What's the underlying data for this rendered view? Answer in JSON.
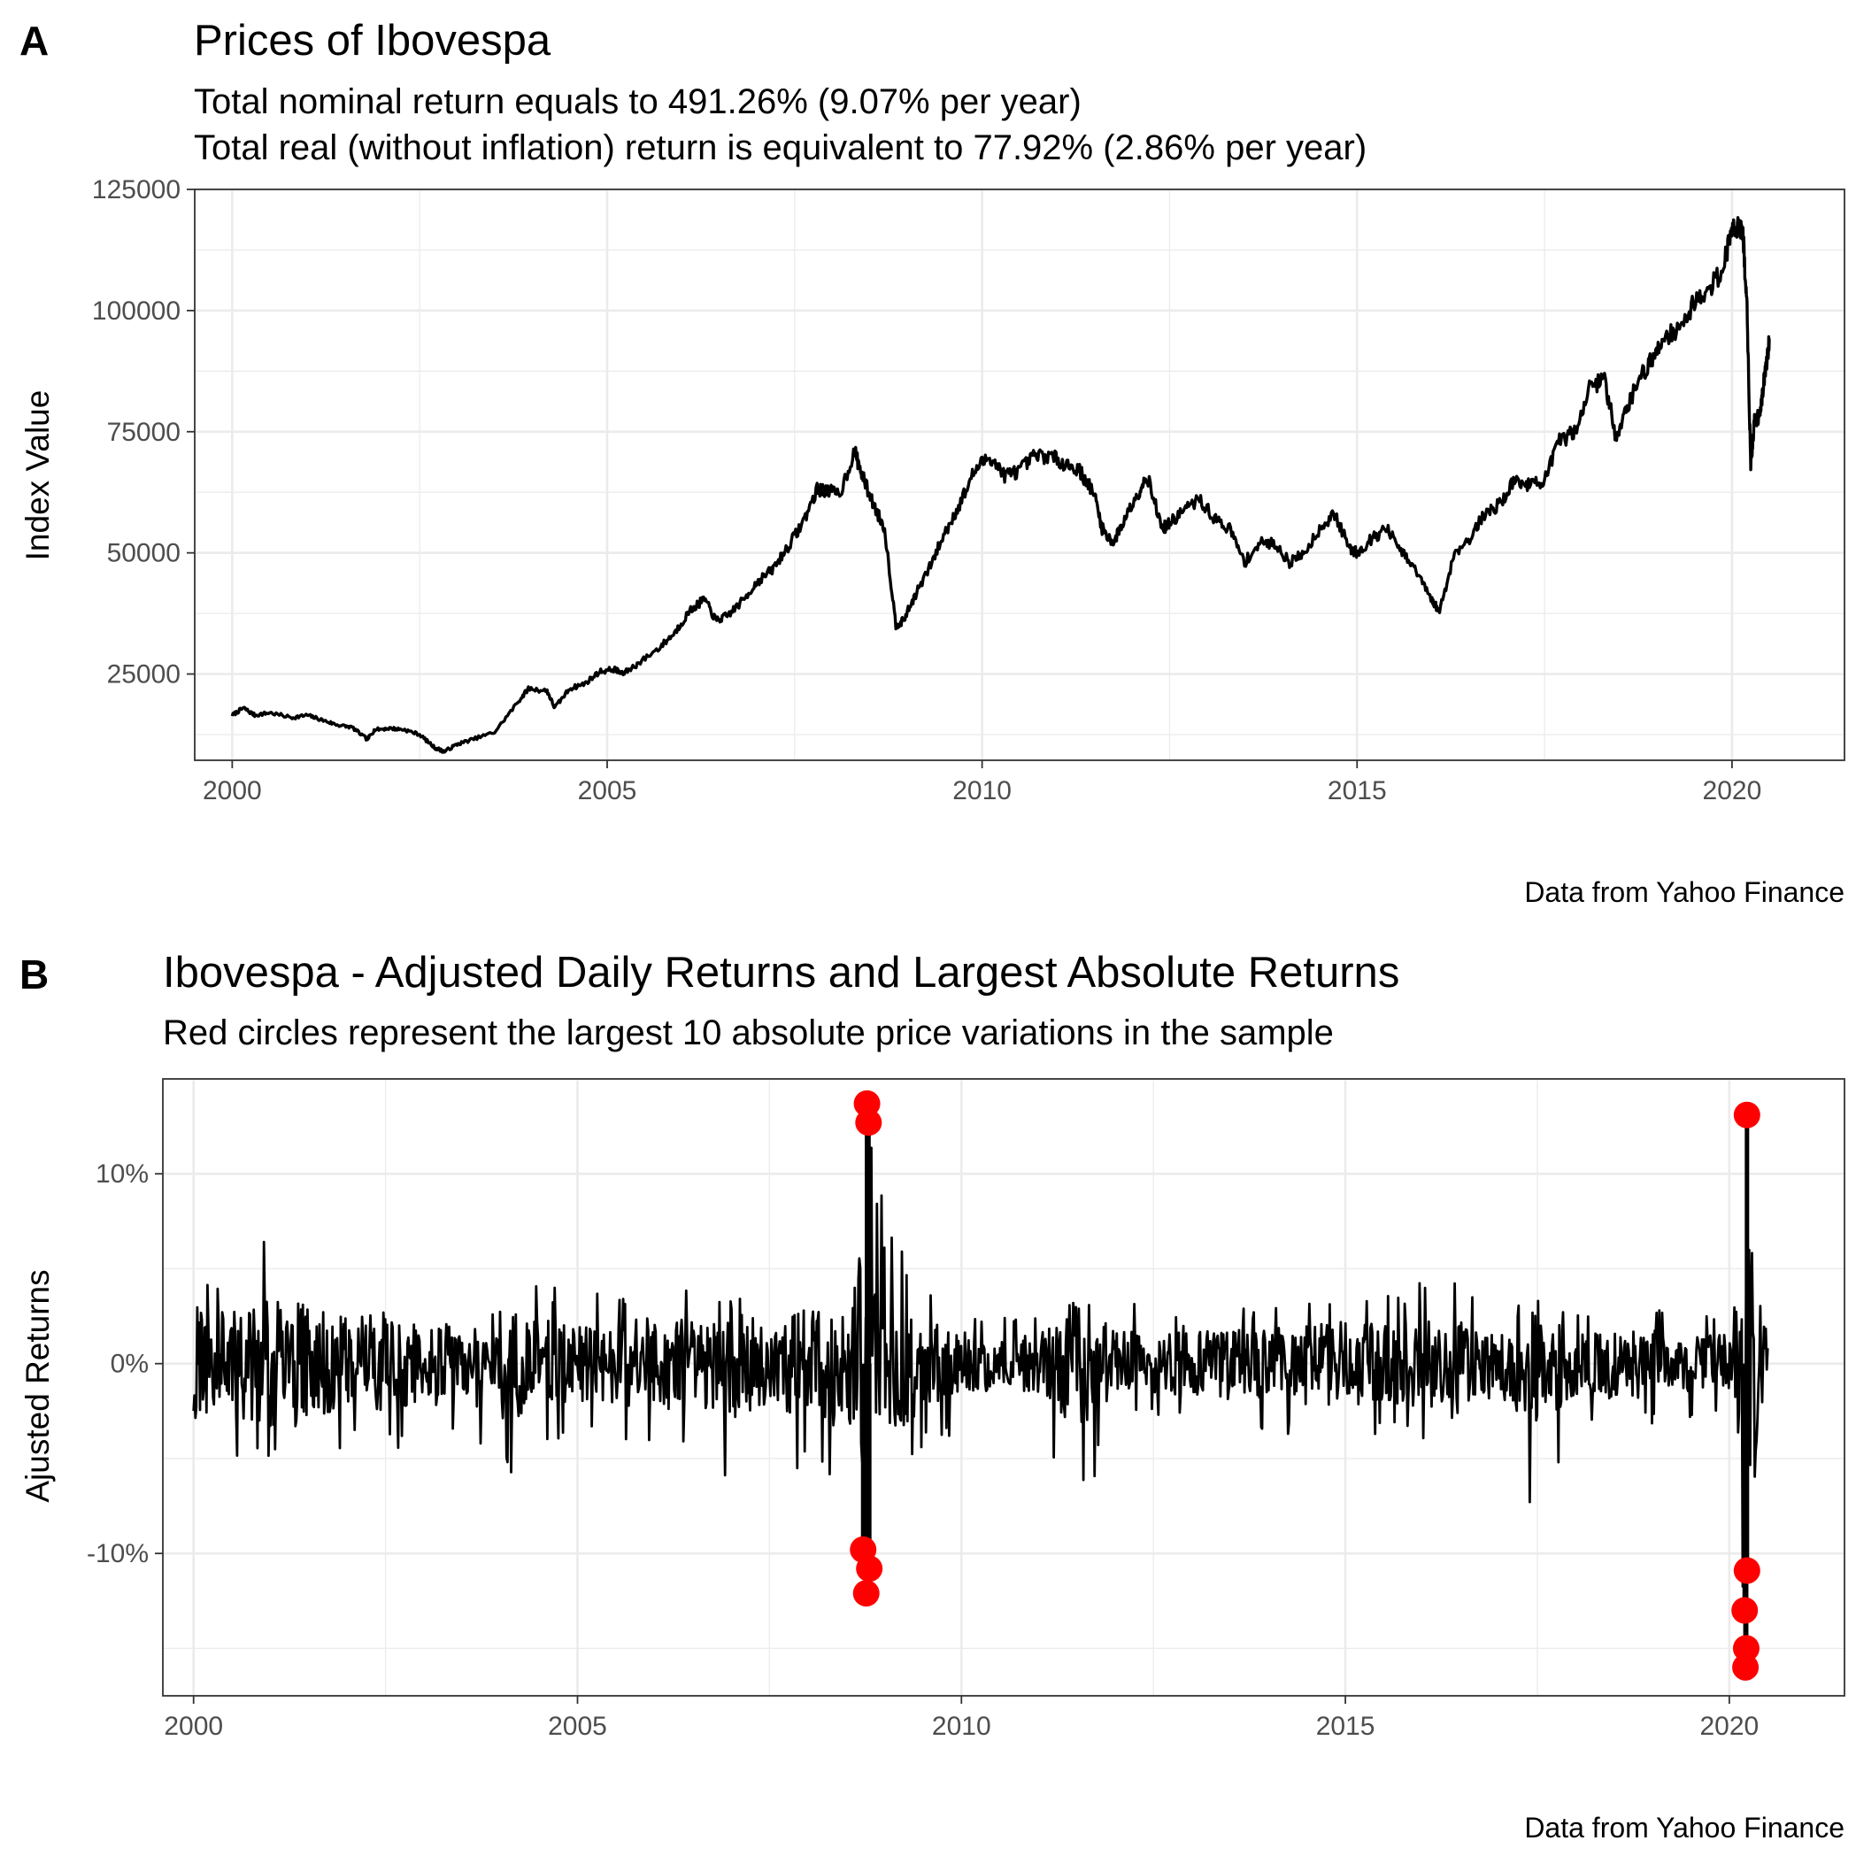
{
  "panels": {
    "a": {
      "tag": "A",
      "title": "Prices of Ibovespa",
      "subtitle_line1": "Total nominal return equals to 491.26% (9.07% per year)",
      "subtitle_line2": "Total real (without inflation) return is equivalent to 77.92% (2.86% per year)",
      "caption": "Data from Yahoo Finance"
    },
    "b": {
      "tag": "B",
      "title": "Ibovespa - Adjusted Daily Returns and Largest Absolute Returns",
      "subtitle": "Red circles represent the largest 10 absolute price variations in the sample",
      "caption": "Data from Yahoo Finance"
    }
  },
  "chart_data": [
    {
      "type": "line",
      "title": "Prices of Ibovespa",
      "subtitle": "Total nominal return equals to 491.26% (9.07% per year)\nTotal real (without inflation) return is equivalent to 77.92% (2.86% per year)",
      "caption": "Data from Yahoo Finance",
      "xlabel": "",
      "ylabel": "Index Value",
      "xlim": [
        1999.5,
        2021.5
      ],
      "ylim": [
        7200,
        125000
      ],
      "x_ticks": [
        2000,
        2005,
        2010,
        2015,
        2020
      ],
      "x_tick_labels": [
        "2000",
        "2005",
        "2010",
        "2015",
        "2020"
      ],
      "y_ticks": [
        25000,
        50000,
        75000,
        100000,
        125000
      ],
      "y_tick_labels": [
        "25000",
        "50000",
        "75000",
        "100000",
        "125000"
      ],
      "grid": true,
      "line_color": "#000000",
      "series": [
        {
          "x": [
            2000.0,
            2000.15,
            2000.3,
            2000.5,
            2000.8,
            2001.0,
            2001.2,
            2001.4,
            2001.6,
            2001.8,
            2001.9,
            2002.1,
            2002.3,
            2002.5,
            2002.7,
            2002.83,
            2003.0,
            2003.2,
            2003.5,
            2003.8,
            2003.95,
            2004.2,
            2004.3,
            2004.5,
            2004.7,
            2004.9,
            2005.1,
            2005.2,
            2005.4,
            2005.7,
            2005.9,
            2006.1,
            2006.3,
            2006.45,
            2006.6,
            2006.8,
            2007.0,
            2007.2,
            2007.4,
            2007.6,
            2007.8,
            2007.9,
            2008.1,
            2008.3,
            2008.4,
            2008.55,
            2008.7,
            2008.85,
            2008.95,
            2009.1,
            2009.3,
            2009.5,
            2009.7,
            2009.9,
            2010.1,
            2010.3,
            2010.5,
            2010.7,
            2010.9,
            2011.1,
            2011.3,
            2011.5,
            2011.6,
            2011.75,
            2011.9,
            2012.1,
            2012.2,
            2012.4,
            2012.5,
            2012.7,
            2012.9,
            2013.1,
            2013.3,
            2013.5,
            2013.7,
            2013.9,
            2014.1,
            2014.3,
            2014.5,
            2014.7,
            2014.9,
            2015.0,
            2015.2,
            2015.4,
            2015.6,
            2015.8,
            2016.0,
            2016.1,
            2016.3,
            2016.5,
            2016.7,
            2016.9,
            2017.1,
            2017.3,
            2017.5,
            2017.7,
            2017.9,
            2018.1,
            2018.3,
            2018.45,
            2018.6,
            2018.8,
            2018.95,
            2019.1,
            2019.3,
            2019.5,
            2019.7,
            2019.9,
            2020.0,
            2020.1,
            2020.15,
            2020.2,
            2020.25,
            2020.3,
            2020.35,
            2020.4,
            2020.45,
            2020.5
          ],
          "values": [
            16500,
            18000,
            16500,
            17000,
            16000,
            16500,
            15500,
            14500,
            14000,
            11500,
            13500,
            13800,
            13500,
            12500,
            9800,
            9000,
            10500,
            11500,
            13000,
            19000,
            22000,
            21500,
            18000,
            22000,
            23000,
            25500,
            26000,
            25000,
            27000,
            30500,
            33500,
            38000,
            40500,
            36000,
            37000,
            40000,
            44000,
            46500,
            51000,
            56000,
            63000,
            63000,
            62000,
            71000,
            66000,
            60000,
            55000,
            35000,
            36000,
            41000,
            47000,
            54000,
            60000,
            67000,
            70000,
            66000,
            67000,
            70000,
            70000,
            68500,
            67000,
            62000,
            55000,
            52000,
            57000,
            63000,
            66000,
            55000,
            56000,
            59000,
            61000,
            57000,
            55000,
            48000,
            52000,
            52000,
            48000,
            50000,
            55000,
            58000,
            51000,
            50000,
            53000,
            55000,
            50000,
            46000,
            40000,
            38000,
            50000,
            53000,
            58000,
            60000,
            65000,
            64000,
            65000,
            73000,
            75000,
            84000,
            86000,
            74000,
            80000,
            87000,
            90000,
            95000,
            96000,
            102000,
            104000,
            110000,
            117000,
            118000,
            115000,
            100000,
            68000,
            77000,
            78000,
            82000,
            88000,
            94000
          ]
        }
      ]
    },
    {
      "type": "line",
      "title": "Ibovespa - Adjusted Daily Returns and Largest Absolute Returns",
      "subtitle": "Red circles represent the largest 10 absolute price variations in the sample",
      "caption": "Data from Yahoo Finance",
      "xlabel": "",
      "ylabel": "Ajusted Returns",
      "xlim": [
        1999.6,
        2021.5
      ],
      "ylim": [
        -0.175,
        0.15
      ],
      "x_ticks": [
        2000,
        2005,
        2010,
        2015,
        2020
      ],
      "x_tick_labels": [
        "2000",
        "2005",
        "2010",
        "2015",
        "2020"
      ],
      "y_ticks": [
        -0.1,
        0.0,
        0.1
      ],
      "y_tick_labels": [
        "-10%",
        "0%",
        "10%"
      ],
      "grid": true,
      "line_color": "#000000",
      "point_color": "#ff0000",
      "series": [
        {
          "name": "Largest absolute returns",
          "x": [
            2008.77,
            2008.79,
            2008.72,
            2008.8,
            2008.76,
            2020.23,
            2020.23,
            2020.2,
            2020.22,
            2020.21
          ],
          "values": [
            0.137,
            0.127,
            -0.098,
            -0.108,
            -0.121,
            0.131,
            -0.109,
            -0.13,
            -0.15,
            -0.16
          ]
        }
      ],
      "returns_envelope": {
        "x": [
          2000.0,
          2000.5,
          2001.0,
          2001.5,
          2002.0,
          2002.5,
          2003.0,
          2003.5,
          2004.0,
          2004.5,
          2005.0,
          2005.5,
          2006.0,
          2006.5,
          2007.0,
          2007.5,
          2008.0,
          2008.5,
          2008.75,
          2009.0,
          2009.5,
          2010.0,
          2010.5,
          2011.0,
          2011.5,
          2012.0,
          2012.5,
          2013.0,
          2013.5,
          2014.0,
          2014.5,
          2015.0,
          2015.5,
          2016.0,
          2016.5,
          2017.0,
          2017.5,
          2018.0,
          2018.5,
          2019.0,
          2019.5,
          2020.0,
          2020.25,
          2020.5
        ],
        "upper": [
          0.045,
          0.05,
          0.07,
          0.045,
          0.04,
          0.05,
          0.045,
          0.035,
          0.05,
          0.04,
          0.04,
          0.035,
          0.05,
          0.04,
          0.035,
          0.04,
          0.05,
          0.06,
          0.14,
          0.08,
          0.04,
          0.03,
          0.025,
          0.025,
          0.04,
          0.035,
          0.03,
          0.025,
          0.03,
          0.03,
          0.04,
          0.04,
          0.035,
          0.045,
          0.05,
          0.03,
          0.035,
          0.025,
          0.04,
          0.03,
          0.025,
          0.025,
          0.13,
          0.045
        ],
        "lower": [
          -0.065,
          -0.05,
          -0.055,
          -0.075,
          -0.045,
          -0.05,
          -0.04,
          -0.035,
          -0.065,
          -0.045,
          -0.035,
          -0.04,
          -0.045,
          -0.04,
          -0.07,
          -0.045,
          -0.06,
          -0.065,
          -0.12,
          -0.08,
          -0.045,
          -0.035,
          -0.03,
          -0.03,
          -0.085,
          -0.03,
          -0.03,
          -0.035,
          -0.04,
          -0.035,
          -0.04,
          -0.04,
          -0.04,
          -0.04,
          -0.03,
          -0.035,
          -0.09,
          -0.035,
          -0.03,
          -0.035,
          -0.03,
          -0.03,
          -0.16,
          -0.03
        ]
      }
    }
  ]
}
